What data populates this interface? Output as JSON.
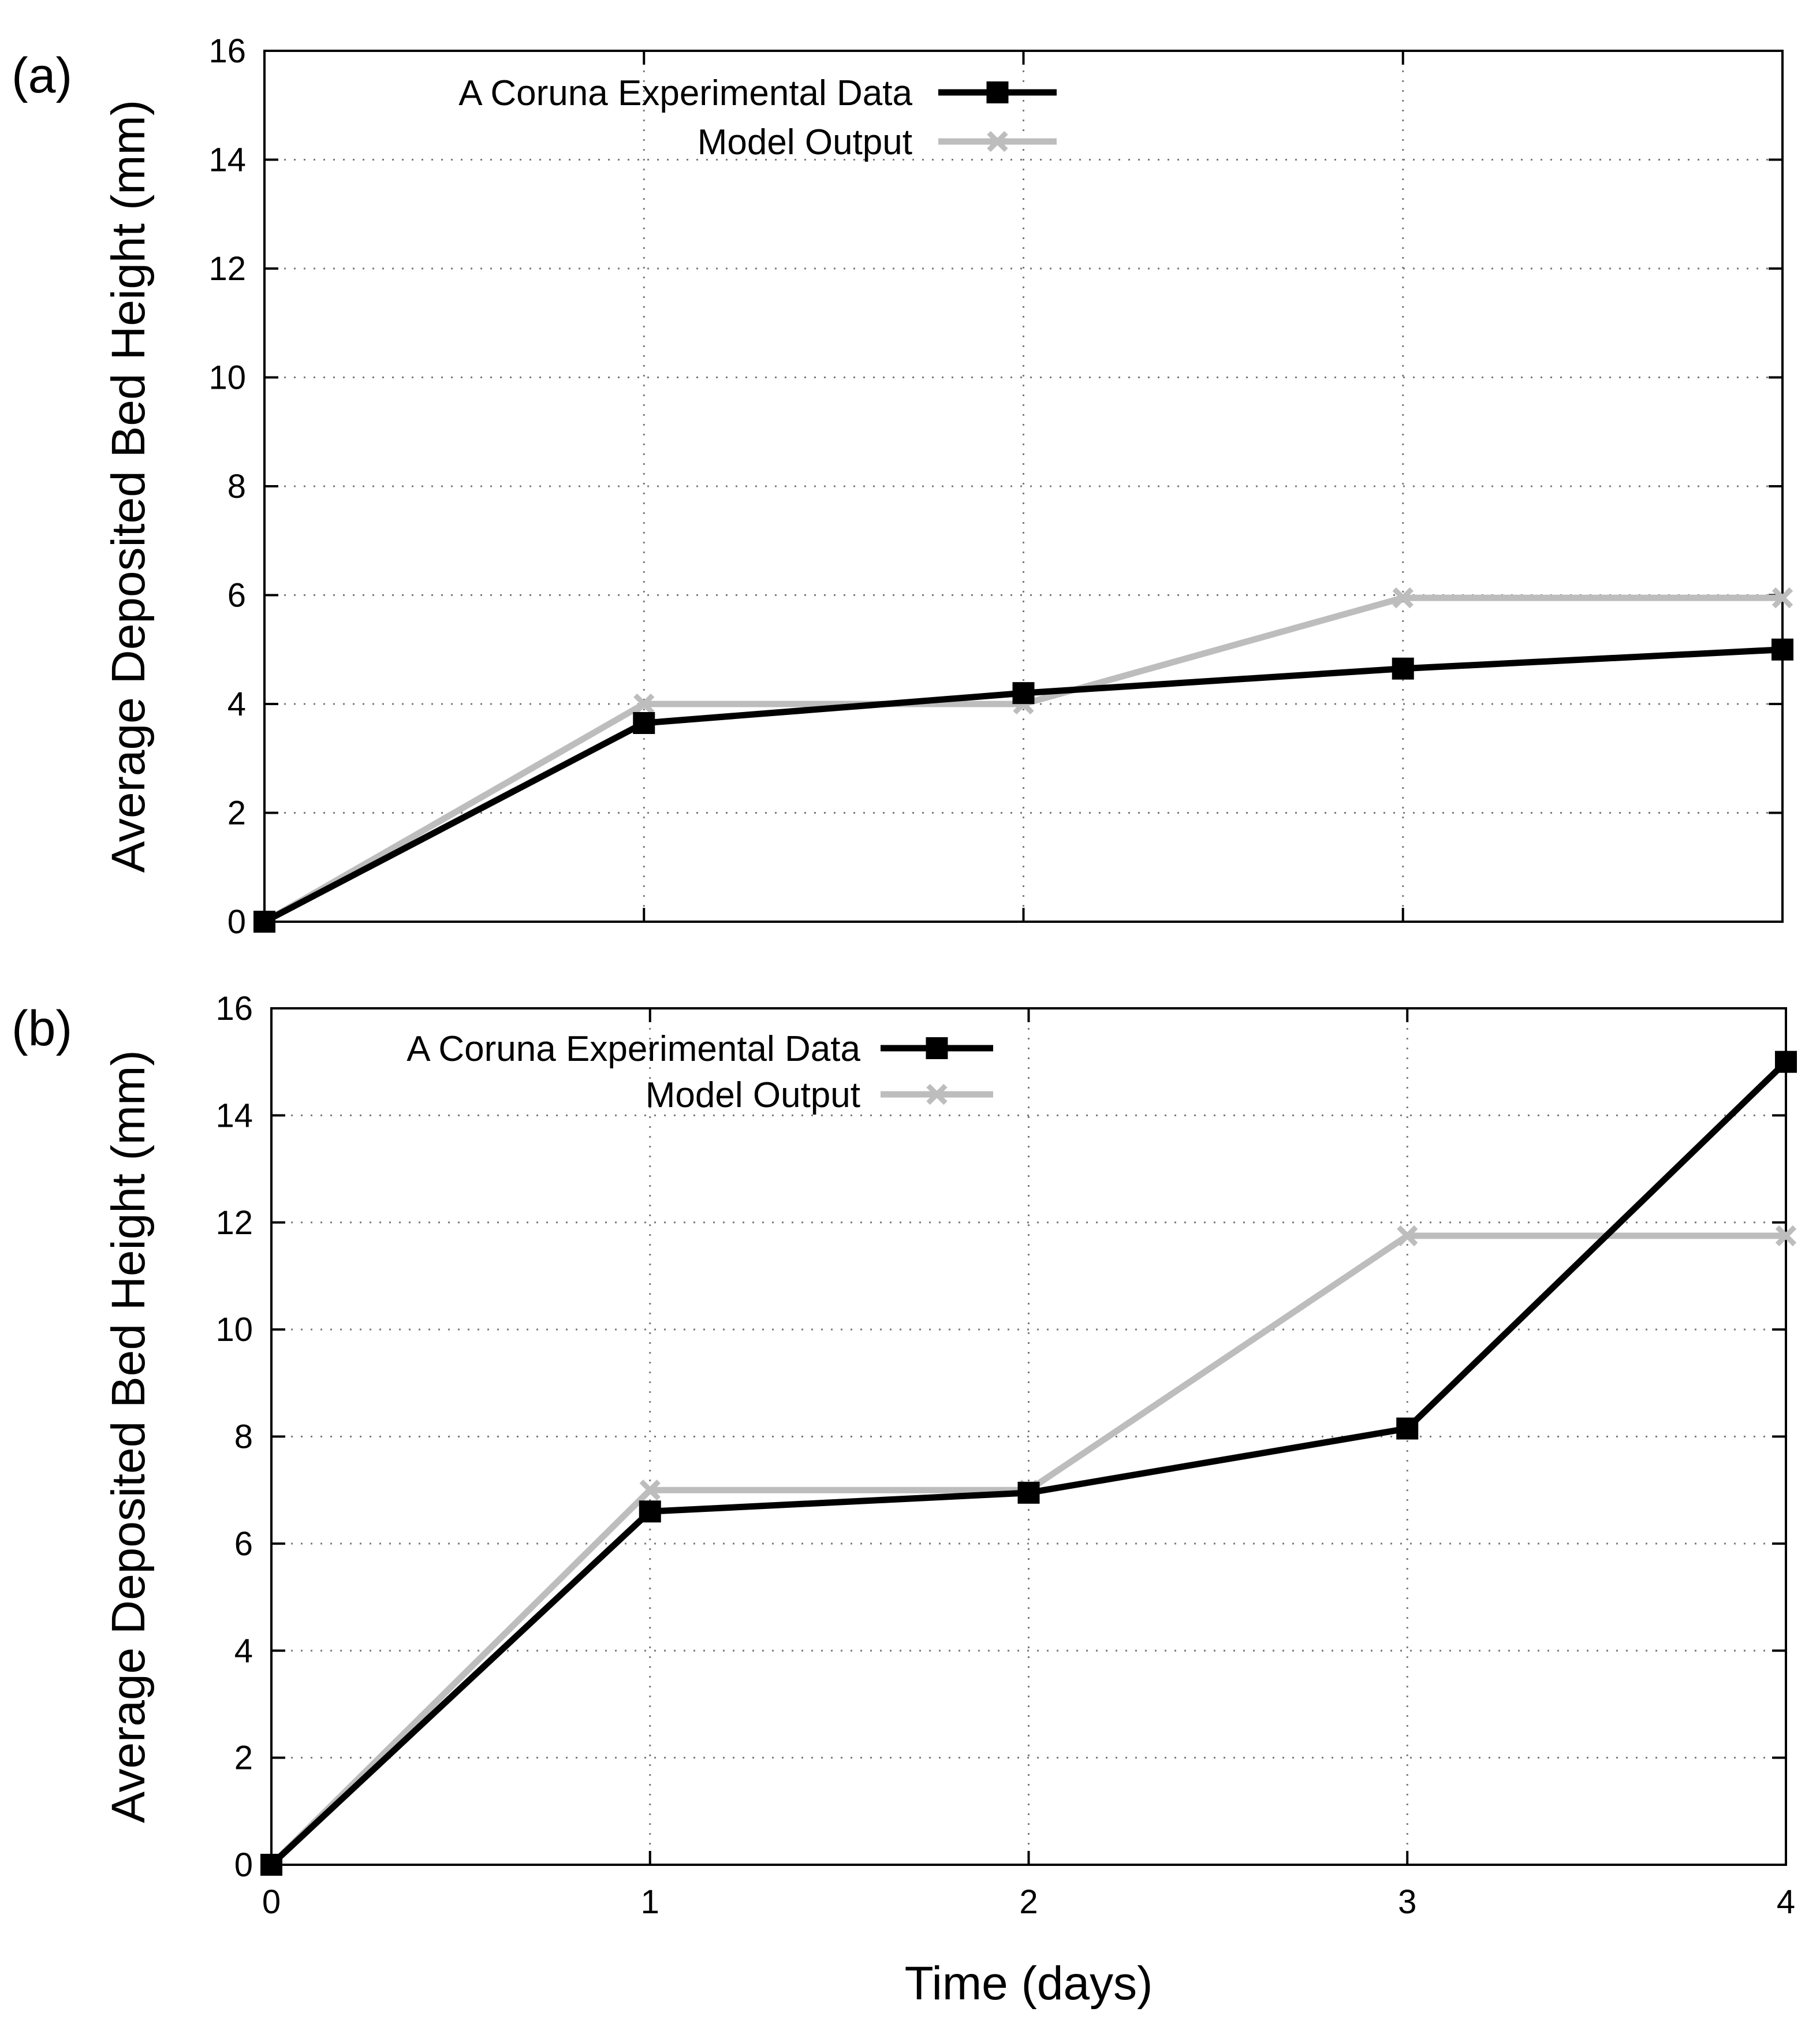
{
  "colors": {
    "experimental": "#000000",
    "model": "#bdbdbd"
  },
  "chart_data": [
    {
      "type": "line",
      "panel_label": "(a)",
      "title": "",
      "ylabel": "Average Deposited Bed Height (mm)",
      "xlabel": "",
      "xlim": [
        0,
        4
      ],
      "ylim": [
        0,
        16
      ],
      "x_ticks": [
        0,
        1,
        2,
        3,
        4
      ],
      "x_tick_labels_shown": false,
      "y_ticks": [
        0,
        2,
        4,
        6,
        8,
        10,
        12,
        14,
        16
      ],
      "grid": true,
      "legend_position": "top-left",
      "series": [
        {
          "name": "A Coruna Experimental Data",
          "marker": "square",
          "color_key": "experimental",
          "x": [
            0,
            1,
            2,
            3,
            4
          ],
          "values": [
            0,
            3.65,
            4.2,
            4.65,
            5.0
          ]
        },
        {
          "name": "Model Output",
          "marker": "cross",
          "color_key": "model",
          "x": [
            0,
            1,
            2,
            3,
            4
          ],
          "values": [
            0,
            4.0,
            4.0,
            5.95,
            5.95
          ]
        }
      ]
    },
    {
      "type": "line",
      "panel_label": "(b)",
      "title": "",
      "ylabel": "Average Deposited Bed Height (mm)",
      "xlabel": "Time (days)",
      "xlim": [
        0,
        4
      ],
      "ylim": [
        0,
        16
      ],
      "x_ticks": [
        0,
        1,
        2,
        3,
        4
      ],
      "x_tick_labels_shown": true,
      "y_ticks": [
        0,
        2,
        4,
        6,
        8,
        10,
        12,
        14,
        16
      ],
      "grid": true,
      "legend_position": "top-left",
      "series": [
        {
          "name": "A Coruna Experimental Data",
          "marker": "square",
          "color_key": "experimental",
          "x": [
            0,
            1,
            2,
            3,
            4
          ],
          "values": [
            0,
            6.6,
            6.95,
            8.15,
            15.0
          ]
        },
        {
          "name": "Model Output",
          "marker": "cross",
          "color_key": "model",
          "x": [
            0,
            1,
            2,
            3,
            4
          ],
          "values": [
            0,
            7.0,
            7.0,
            11.75,
            11.75
          ]
        }
      ]
    }
  ]
}
